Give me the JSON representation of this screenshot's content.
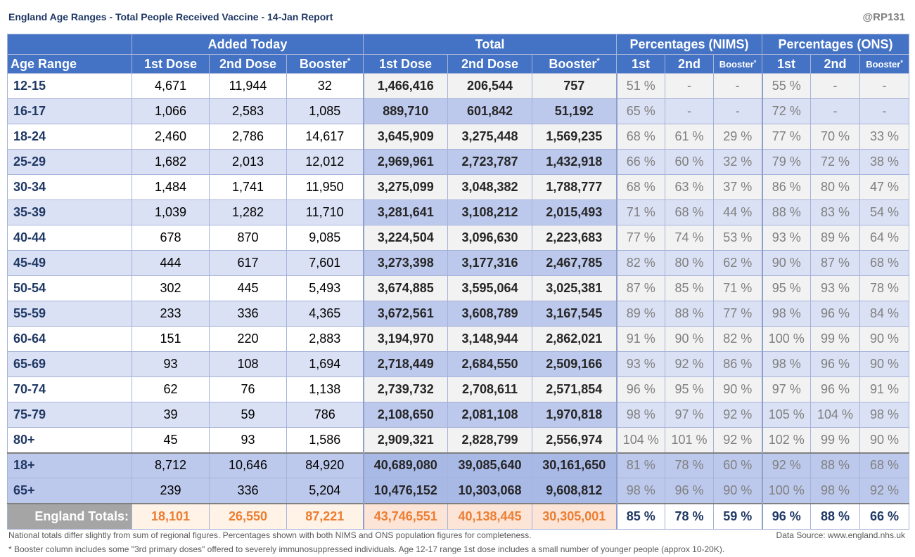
{
  "report": {
    "title": "England Age Ranges - Total People Received Vaccine - 14-Jan Report",
    "handle": "@RP131"
  },
  "headers": {
    "group_added": "Added Today",
    "group_total": "Total",
    "group_nims": "Percentages (NIMS)",
    "group_ons": "Percentages (ONS)",
    "age_range": "Age Range",
    "first_dose": "1st Dose",
    "second_dose": "2nd Dose",
    "booster": "Booster",
    "booster_mark": "*",
    "pct_first": "1st",
    "pct_second": "2nd"
  },
  "rows": [
    {
      "age": "12-15",
      "a1": "4,671",
      "a2": "11,944",
      "ab": "32",
      "t1": "1,466,416",
      "t2": "206,544",
      "tb": "757",
      "n1": "51 %",
      "n2": "-",
      "nb": "-",
      "o1": "55 %",
      "o2": "-",
      "ob": "-"
    },
    {
      "age": "16-17",
      "a1": "1,066",
      "a2": "2,583",
      "ab": "1,085",
      "t1": "889,710",
      "t2": "601,842",
      "tb": "51,192",
      "n1": "65 %",
      "n2": "-",
      "nb": "-",
      "o1": "72 %",
      "o2": "-",
      "ob": "-"
    },
    {
      "age": "18-24",
      "a1": "2,460",
      "a2": "2,786",
      "ab": "14,617",
      "t1": "3,645,909",
      "t2": "3,275,448",
      "tb": "1,569,235",
      "n1": "68 %",
      "n2": "61 %",
      "nb": "29 %",
      "o1": "77 %",
      "o2": "70 %",
      "ob": "33 %"
    },
    {
      "age": "25-29",
      "a1": "1,682",
      "a2": "2,013",
      "ab": "12,012",
      "t1": "2,969,961",
      "t2": "2,723,787",
      "tb": "1,432,918",
      "n1": "66 %",
      "n2": "60 %",
      "nb": "32 %",
      "o1": "79 %",
      "o2": "72 %",
      "ob": "38 %"
    },
    {
      "age": "30-34",
      "a1": "1,484",
      "a2": "1,741",
      "ab": "11,950",
      "t1": "3,275,099",
      "t2": "3,048,382",
      "tb": "1,788,777",
      "n1": "68 %",
      "n2": "63 %",
      "nb": "37 %",
      "o1": "86 %",
      "o2": "80 %",
      "ob": "47 %"
    },
    {
      "age": "35-39",
      "a1": "1,039",
      "a2": "1,282",
      "ab": "11,710",
      "t1": "3,281,641",
      "t2": "3,108,212",
      "tb": "2,015,493",
      "n1": "71 %",
      "n2": "68 %",
      "nb": "44 %",
      "o1": "88 %",
      "o2": "83 %",
      "ob": "54 %"
    },
    {
      "age": "40-44",
      "a1": "678",
      "a2": "870",
      "ab": "9,085",
      "t1": "3,224,504",
      "t2": "3,096,630",
      "tb": "2,223,683",
      "n1": "77 %",
      "n2": "74 %",
      "nb": "53 %",
      "o1": "93 %",
      "o2": "89 %",
      "ob": "64 %"
    },
    {
      "age": "45-49",
      "a1": "444",
      "a2": "617",
      "ab": "7,601",
      "t1": "3,273,398",
      "t2": "3,177,316",
      "tb": "2,467,785",
      "n1": "82 %",
      "n2": "80 %",
      "nb": "62 %",
      "o1": "90 %",
      "o2": "87 %",
      "ob": "68 %"
    },
    {
      "age": "50-54",
      "a1": "302",
      "a2": "445",
      "ab": "5,493",
      "t1": "3,674,885",
      "t2": "3,595,064",
      "tb": "3,025,381",
      "n1": "87 %",
      "n2": "85 %",
      "nb": "71 %",
      "o1": "95 %",
      "o2": "93 %",
      "ob": "78 %"
    },
    {
      "age": "55-59",
      "a1": "233",
      "a2": "336",
      "ab": "4,365",
      "t1": "3,672,561",
      "t2": "3,608,789",
      "tb": "3,167,545",
      "n1": "89 %",
      "n2": "88 %",
      "nb": "77 %",
      "o1": "98 %",
      "o2": "96 %",
      "ob": "84 %"
    },
    {
      "age": "60-64",
      "a1": "151",
      "a2": "220",
      "ab": "2,883",
      "t1": "3,194,970",
      "t2": "3,148,944",
      "tb": "2,862,021",
      "n1": "91 %",
      "n2": "90 %",
      "nb": "82 %",
      "o1": "100 %",
      "o2": "99 %",
      "ob": "90 %"
    },
    {
      "age": "65-69",
      "a1": "93",
      "a2": "108",
      "ab": "1,694",
      "t1": "2,718,449",
      "t2": "2,684,550",
      "tb": "2,509,166",
      "n1": "93 %",
      "n2": "92 %",
      "nb": "86 %",
      "o1": "98 %",
      "o2": "96 %",
      "ob": "90 %"
    },
    {
      "age": "70-74",
      "a1": "62",
      "a2": "76",
      "ab": "1,138",
      "t1": "2,739,732",
      "t2": "2,708,611",
      "tb": "2,571,854",
      "n1": "96 %",
      "n2": "95 %",
      "nb": "90 %",
      "o1": "97 %",
      "o2": "96 %",
      "ob": "91 %"
    },
    {
      "age": "75-79",
      "a1": "39",
      "a2": "59",
      "ab": "786",
      "t1": "2,108,650",
      "t2": "2,081,108",
      "tb": "1,970,818",
      "n1": "98 %",
      "n2": "97 %",
      "nb": "92 %",
      "o1": "105 %",
      "o2": "104 %",
      "ob": "98 %"
    },
    {
      "age": "80+",
      "a1": "45",
      "a2": "93",
      "ab": "1,586",
      "t1": "2,909,321",
      "t2": "2,828,799",
      "tb": "2,556,974",
      "n1": "104 %",
      "n2": "101 %",
      "nb": "92 %",
      "o1": "102 %",
      "o2": "99 %",
      "ob": "90 %"
    },
    {
      "age": "18+",
      "a1": "8,712",
      "a2": "10,646",
      "ab": "84,920",
      "t1": "40,689,080",
      "t2": "39,085,640",
      "tb": "30,161,650",
      "n1": "81 %",
      "n2": "78 %",
      "nb": "60 %",
      "o1": "92 %",
      "o2": "88 %",
      "ob": "68 %"
    },
    {
      "age": "65+",
      "a1": "239",
      "a2": "336",
      "ab": "5,204",
      "t1": "10,476,152",
      "t2": "10,303,068",
      "tb": "9,608,812",
      "n1": "98 %",
      "n2": "96 %",
      "nb": "90 %",
      "o1": "100 %",
      "o2": "98 %",
      "ob": "92 %"
    }
  ],
  "totals": {
    "label": "England Totals:",
    "a1": "18,101",
    "a2": "26,550",
    "ab": "87,221",
    "t1": "43,746,551",
    "t2": "40,138,445",
    "tb": "30,305,001",
    "n1": "85 %",
    "n2": "78 %",
    "nb": "59 %",
    "o1": "96 %",
    "o2": "88 %",
    "ob": "66 %"
  },
  "footer": {
    "note1": "National totals differ slightly from sum of regional figures. Percentages shown with both NIMS and ONS population figures for completeness.",
    "source": "Data Source: www.england.nhs.uk",
    "note2": "* Booster column includes some \"3rd primary doses\" offered to severely immunosuppressed individuals. Age 12-17 range 1st dose includes a small number of younger people (approx 10-20K)."
  }
}
